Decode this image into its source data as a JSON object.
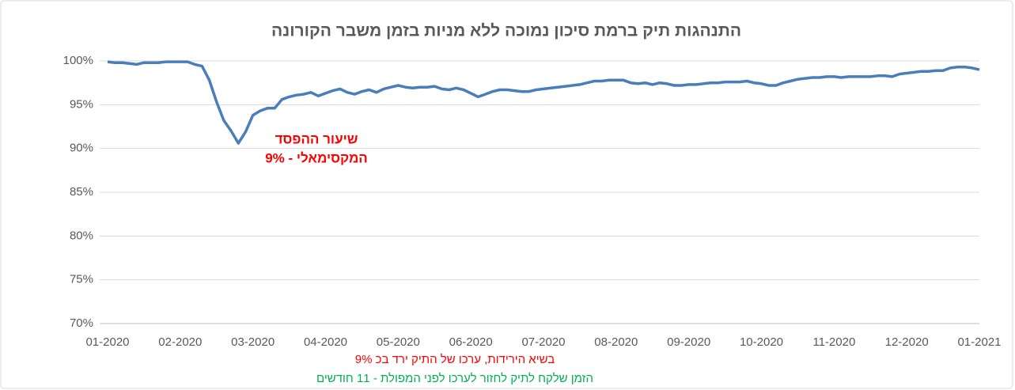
{
  "chart_data": {
    "type": "line",
    "title": "התנהגות תיק ברמת סיכון נמוכה ללא מניות בזמן משבר הקורונה",
    "categories": [
      "01-2020",
      null,
      null,
      null,
      null,
      null,
      null,
      null,
      null,
      null,
      "02-2020",
      null,
      null,
      null,
      null,
      null,
      null,
      null,
      null,
      null,
      "03-2020",
      null,
      null,
      null,
      null,
      null,
      null,
      null,
      null,
      null,
      "04-2020",
      null,
      null,
      null,
      null,
      null,
      null,
      null,
      null,
      null,
      "05-2020",
      null,
      null,
      null,
      null,
      null,
      null,
      null,
      null,
      null,
      "06-2020",
      null,
      null,
      null,
      null,
      null,
      null,
      null,
      null,
      null,
      "07-2020",
      null,
      null,
      null,
      null,
      null,
      null,
      null,
      null,
      null,
      "08-2020",
      null,
      null,
      null,
      null,
      null,
      null,
      null,
      null,
      null,
      "09-2020",
      null,
      null,
      null,
      null,
      null,
      null,
      null,
      null,
      null,
      "10-2020",
      null,
      null,
      null,
      null,
      null,
      null,
      null,
      null,
      null,
      "11-2020",
      null,
      null,
      null,
      null,
      null,
      null,
      null,
      null,
      null,
      "12-2020",
      null,
      null,
      null,
      null,
      null,
      null,
      null,
      null,
      null,
      "01-2021"
    ],
    "values": [
      99.9,
      99.8,
      99.8,
      99.7,
      99.6,
      99.8,
      99.8,
      99.8,
      99.9,
      99.9,
      99.9,
      99.9,
      99.6,
      99.4,
      97.8,
      95.3,
      93.2,
      92.0,
      90.6,
      91.9,
      93.8,
      94.3,
      94.6,
      94.6,
      95.6,
      95.9,
      96.1,
      96.2,
      96.4,
      96.0,
      96.3,
      96.6,
      96.8,
      96.4,
      96.2,
      96.5,
      96.7,
      96.4,
      96.8,
      97.0,
      97.2,
      97.0,
      96.9,
      97.0,
      97.0,
      97.1,
      96.8,
      96.7,
      96.9,
      96.7,
      96.3,
      95.9,
      96.2,
      96.5,
      96.7,
      96.7,
      96.6,
      96.5,
      96.5,
      96.7,
      96.8,
      96.9,
      97.0,
      97.1,
      97.2,
      97.3,
      97.5,
      97.7,
      97.7,
      97.8,
      97.8,
      97.8,
      97.5,
      97.4,
      97.5,
      97.3,
      97.5,
      97.4,
      97.2,
      97.2,
      97.3,
      97.3,
      97.4,
      97.5,
      97.5,
      97.6,
      97.6,
      97.6,
      97.7,
      97.5,
      97.4,
      97.2,
      97.2,
      97.5,
      97.7,
      97.9,
      98.0,
      98.1,
      98.1,
      98.2,
      98.2,
      98.1,
      98.2,
      98.2,
      98.2,
      98.2,
      98.3,
      98.3,
      98.2,
      98.5,
      98.6,
      98.7,
      98.8,
      98.8,
      98.9,
      98.9,
      99.2,
      99.3,
      99.3,
      99.2,
      99.0
    ],
    "color": "#4a7ebb",
    "ylim": [
      70,
      100
    ],
    "yticks": [
      {
        "value": 70,
        "label": "70%"
      },
      {
        "value": 75,
        "label": "75%"
      },
      {
        "value": 80,
        "label": "80%"
      },
      {
        "value": 85,
        "label": "85%"
      },
      {
        "value": 90,
        "label": "90%"
      },
      {
        "value": 95,
        "label": "95%"
      },
      {
        "value": 100,
        "label": "100%"
      }
    ],
    "grid": true,
    "annotations": [
      {
        "text": "שיעור ההפסד",
        "color": "#ff0000"
      },
      {
        "text": "המקסימאלי  - 9%",
        "color": "#ff0000"
      },
      {
        "text": "בשיא הירידות, ערכו של התיק ירד בכ 9%",
        "color": "#ff0000"
      },
      {
        "text": "הזמן שלקח לתיק לחזור לערכו לפני המפולת  - 11 חודשים",
        "color": "#00b050"
      }
    ]
  }
}
